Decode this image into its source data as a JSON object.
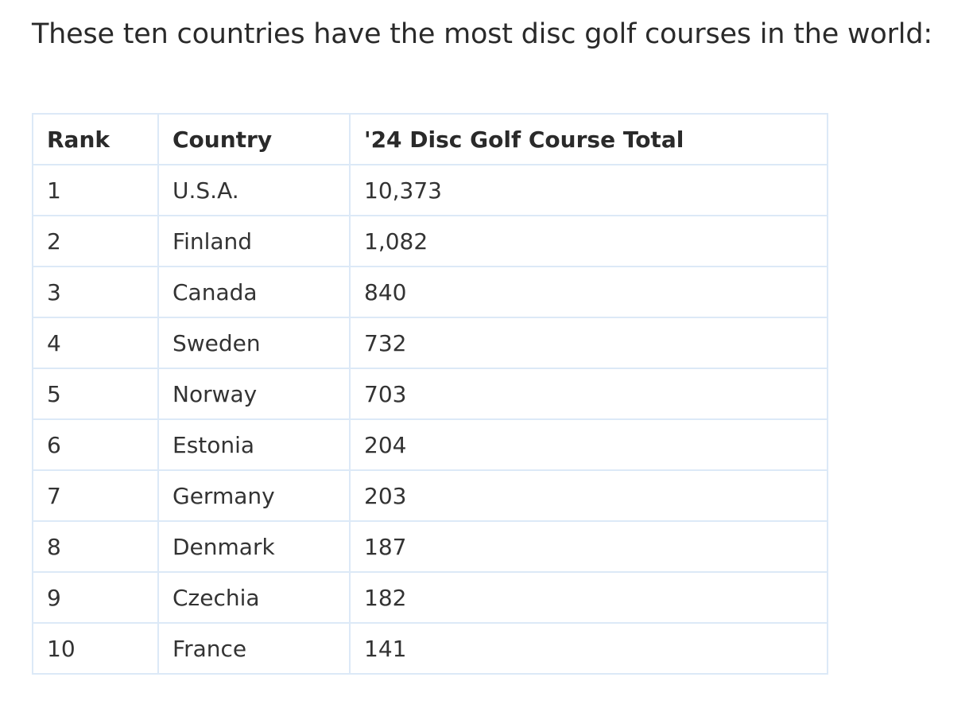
{
  "intro": {
    "text": "These ten countries have the most disc golf courses in the world:"
  },
  "table": {
    "headers": {
      "rank": "Rank",
      "country": "Country",
      "total": "'24 Disc Golf Course Total"
    },
    "rows": [
      {
        "rank": "1",
        "country": "U.S.A.",
        "total": "10,373"
      },
      {
        "rank": "2",
        "country": "Finland",
        "total": "1,082"
      },
      {
        "rank": "3",
        "country": "Canada",
        "total": "840"
      },
      {
        "rank": "4",
        "country": "Sweden",
        "total": "732"
      },
      {
        "rank": "5",
        "country": "Norway",
        "total": "703"
      },
      {
        "rank": "6",
        "country": "Estonia",
        "total": "204"
      },
      {
        "rank": "7",
        "country": "Germany",
        "total": "203"
      },
      {
        "rank": "8",
        "country": "Denmark",
        "total": "187"
      },
      {
        "rank": "9",
        "country": "Czechia",
        "total": "182"
      },
      {
        "rank": "10",
        "country": "France",
        "total": "141"
      }
    ]
  },
  "colors": {
    "border": "#dce9f7",
    "text": "#2a2a2a"
  }
}
